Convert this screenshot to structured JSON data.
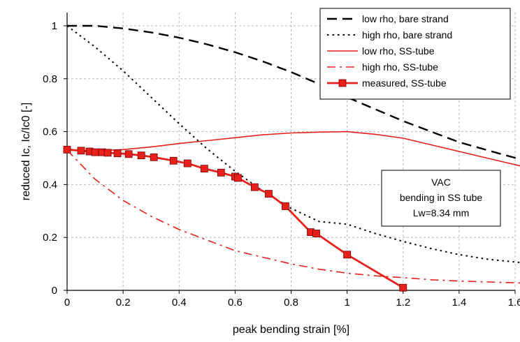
{
  "chart_data": {
    "type": "line",
    "xlabel": "peak bending strain [%]",
    "ylabel": "reduced Ic, Ic/Ic0 [-]",
    "xlim": [
      0,
      1.6
    ],
    "ylim": [
      0,
      1.05
    ],
    "x_ticks": [
      0,
      0.2,
      0.4,
      0.6,
      0.8,
      1,
      1.2,
      1.4,
      1.6
    ],
    "x_tick_labels": [
      "0",
      "0.2",
      "0.4",
      "0.6",
      "0.8",
      "1",
      "1.2",
      "1.4",
      "1.6"
    ],
    "y_ticks": [
      0,
      0.2,
      0.4,
      0.6,
      0.8,
      1
    ],
    "y_tick_labels": [
      "0",
      "0.2",
      "0.4",
      "0.6",
      "0.8",
      "1"
    ],
    "grid": true,
    "legend_position": "top-right",
    "series": [
      {
        "name": "low rho, bare strand",
        "color": "#000000",
        "style": "dashed",
        "x": [
          0,
          0.1,
          0.2,
          0.3,
          0.4,
          0.5,
          0.6,
          0.7,
          0.8,
          0.9,
          1.0,
          1.1,
          1.2,
          1.3,
          1.4,
          1.5,
          1.62
        ],
        "y": [
          1.0,
          1.0,
          0.99,
          0.975,
          0.955,
          0.93,
          0.9,
          0.865,
          0.825,
          0.78,
          0.73,
          0.685,
          0.64,
          0.6,
          0.56,
          0.53,
          0.495
        ]
      },
      {
        "name": "high rho, bare strand",
        "color": "#000000",
        "style": "dotted",
        "x": [
          0,
          0.1,
          0.2,
          0.3,
          0.4,
          0.5,
          0.6,
          0.7,
          0.8,
          0.9,
          1.0,
          1.1,
          1.2,
          1.3,
          1.4,
          1.5,
          1.62
        ],
        "y": [
          1.0,
          0.92,
          0.83,
          0.73,
          0.63,
          0.535,
          0.45,
          0.375,
          0.31,
          0.26,
          0.25,
          0.215,
          0.185,
          0.158,
          0.135,
          0.118,
          0.105
        ]
      },
      {
        "name": "low rho, SS-tube",
        "color": "#e8201c",
        "style": "solid",
        "x": [
          0,
          0.1,
          0.2,
          0.3,
          0.4,
          0.5,
          0.6,
          0.7,
          0.8,
          0.9,
          1.0,
          1.1,
          1.2,
          1.3,
          1.4,
          1.5,
          1.62
        ],
        "y": [
          0.53,
          0.527,
          0.532,
          0.542,
          0.555,
          0.566,
          0.577,
          0.588,
          0.595,
          0.598,
          0.6,
          0.59,
          0.575,
          0.55,
          0.525,
          0.5,
          0.47
        ]
      },
      {
        "name": "high rho, SS-tube",
        "color": "#e8201c",
        "style": "dashdot",
        "x": [
          0,
          0.1,
          0.2,
          0.3,
          0.4,
          0.5,
          0.6,
          0.7,
          0.8,
          0.9,
          1.0,
          1.1,
          1.2,
          1.3,
          1.4,
          1.5,
          1.62
        ],
        "y": [
          0.53,
          0.42,
          0.34,
          0.28,
          0.23,
          0.19,
          0.15,
          0.125,
          0.1,
          0.08,
          0.065,
          0.055,
          0.048,
          0.04,
          0.035,
          0.032,
          0.028
        ]
      },
      {
        "name": "measured, SS-tube",
        "color": "#e8201c",
        "style": "solid-markers",
        "x": [
          0,
          0.05,
          0.08,
          0.1,
          0.125,
          0.145,
          0.18,
          0.22,
          0.265,
          0.31,
          0.38,
          0.43,
          0.49,
          0.55,
          0.6,
          0.61,
          0.67,
          0.72,
          0.78,
          0.87,
          0.89,
          1.0,
          1.2
        ],
        "y": [
          0.532,
          0.528,
          0.525,
          0.522,
          0.522,
          0.52,
          0.518,
          0.515,
          0.51,
          0.503,
          0.49,
          0.48,
          0.46,
          0.445,
          0.43,
          0.425,
          0.39,
          0.365,
          0.318,
          0.22,
          0.215,
          0.135,
          0.01
        ]
      }
    ],
    "annotation": {
      "lines": [
        "VAC",
        "bending in SS tube",
        "Lw=8.34 mm"
      ]
    }
  }
}
